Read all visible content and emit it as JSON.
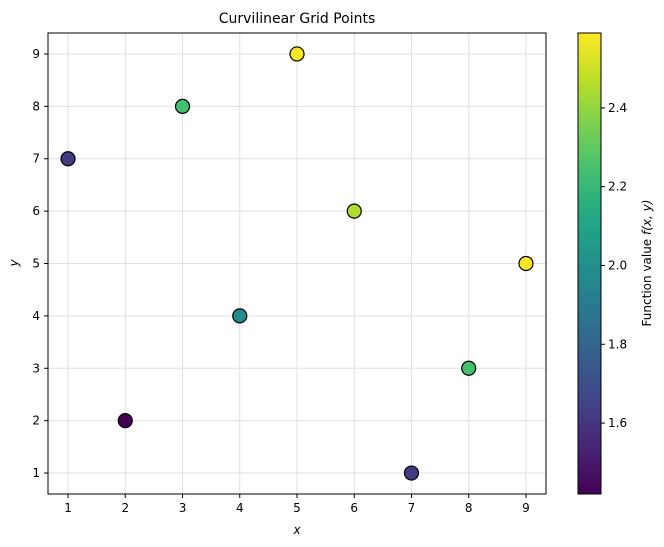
{
  "chart_data": {
    "type": "scatter",
    "title": "Curvilinear Grid Points",
    "xlabel": "x",
    "ylabel": "y",
    "xlim": [
      0.65,
      9.35
    ],
    "ylim": [
      0.6,
      9.4
    ],
    "xticks": [
      1,
      2,
      3,
      4,
      5,
      6,
      7,
      8,
      9
    ],
    "yticks": [
      1,
      2,
      3,
      4,
      5,
      6,
      7,
      8,
      9
    ],
    "grid": true,
    "colormap": "viridis",
    "colorbar": {
      "label": "Function value f(x, y)",
      "label_prefix": "Function value ",
      "label_math": "f(x, y)",
      "range": [
        1.42,
        2.59
      ],
      "ticks": [
        "1.6",
        "1.8",
        "2.0",
        "2.2",
        "2.4"
      ]
    },
    "points": [
      {
        "x": 1,
        "y": 7,
        "value": 1.62
      },
      {
        "x": 2,
        "y": 2,
        "value": 1.42
      },
      {
        "x": 3,
        "y": 8,
        "value": 2.24
      },
      {
        "x": 4,
        "y": 4,
        "value": 1.98
      },
      {
        "x": 5,
        "y": 9,
        "value": 2.59
      },
      {
        "x": 6,
        "y": 6,
        "value": 2.45
      },
      {
        "x": 7,
        "y": 1,
        "value": 1.62
      },
      {
        "x": 8,
        "y": 3,
        "value": 2.24
      },
      {
        "x": 9,
        "y": 5,
        "value": 2.58
      }
    ]
  }
}
